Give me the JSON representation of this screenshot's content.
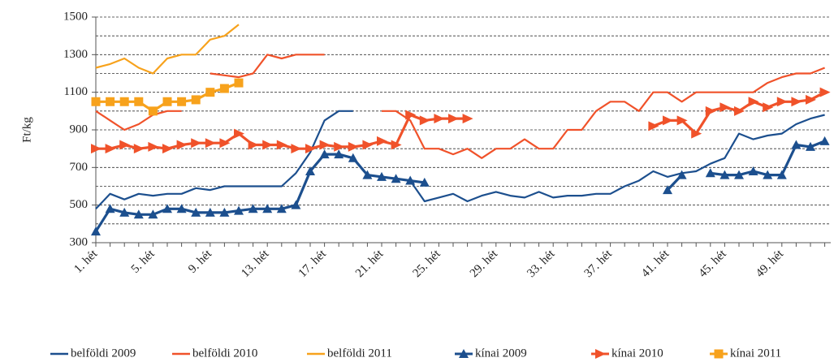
{
  "chart_data": {
    "type": "line",
    "y_label": "Ft/kg",
    "categories": [
      "1. hét",
      null,
      null,
      null,
      "5. hét",
      null,
      null,
      null,
      "9. hét",
      null,
      null,
      null,
      "13. hét",
      null,
      null,
      null,
      "17. hét",
      null,
      null,
      null,
      "21. hét",
      null,
      null,
      null,
      "25. hét",
      null,
      null,
      null,
      "29. hét",
      null,
      null,
      null,
      "33. hét",
      null,
      null,
      null,
      "37. hét",
      null,
      null,
      null,
      "41. hét",
      null,
      null,
      null,
      "45. hét",
      null,
      null,
      null,
      "49. hét",
      null,
      null,
      null
    ],
    "ylim": [
      300,
      1500
    ],
    "yticks": [
      300,
      500,
      700,
      900,
      1100,
      1300,
      1500
    ],
    "minor_yticks": [
      400,
      600,
      800,
      1000,
      1200,
      1400
    ],
    "grid": true,
    "legend": "bottom",
    "series": [
      {
        "name": "belföldi 2009",
        "color": "#1c4f8e",
        "marker": "none",
        "values": [
          480,
          560,
          530,
          560,
          550,
          560,
          560,
          590,
          580,
          600,
          600,
          600,
          600,
          600,
          670,
          780,
          950,
          1000,
          1000,
          null,
          null,
          null,
          630,
          520,
          540,
          560,
          520,
          550,
          570,
          550,
          540,
          570,
          540,
          550,
          550,
          560,
          560,
          600,
          630,
          680,
          650,
          670,
          680,
          720,
          750,
          880,
          850,
          870,
          880,
          930,
          960,
          980
        ]
      },
      {
        "name": "belföldi 2010",
        "color": "#f0522a",
        "marker": "none",
        "values": [
          1000,
          950,
          900,
          930,
          980,
          1000,
          1000,
          null,
          1200,
          1190,
          1180,
          1200,
          1300,
          1280,
          1300,
          1300,
          1300,
          null,
          null,
          null,
          1000,
          1000,
          950,
          800,
          800,
          770,
          800,
          750,
          800,
          800,
          850,
          800,
          800,
          900,
          900,
          1000,
          1050,
          1050,
          1000,
          1100,
          1100,
          1050,
          1100,
          1100,
          1100,
          1100,
          1100,
          1150,
          1180,
          1200,
          1200,
          1230
        ]
      },
      {
        "name": "belföldi 2011",
        "color": "#f7a21c",
        "marker": "none",
        "values": [
          1230,
          1250,
          1280,
          1230,
          1200,
          1280,
          1300,
          1300,
          1380,
          1400,
          1460,
          null,
          null,
          null,
          null,
          null,
          null,
          null,
          null,
          null,
          null,
          null,
          null,
          null,
          null,
          null,
          null,
          null,
          null,
          null,
          null,
          null,
          null,
          null,
          null,
          null,
          null,
          null,
          null,
          null,
          null,
          null,
          null,
          null,
          null,
          null,
          null,
          null,
          null,
          null,
          null,
          null
        ]
      },
      {
        "name": "kínai 2009",
        "color": "#1c4f8e",
        "marker": "triangle",
        "values": [
          360,
          480,
          460,
          450,
          450,
          480,
          480,
          460,
          460,
          460,
          470,
          480,
          480,
          480,
          500,
          680,
          770,
          770,
          750,
          660,
          650,
          640,
          630,
          620,
          null,
          null,
          null,
          null,
          null,
          null,
          null,
          null,
          null,
          null,
          null,
          null,
          null,
          null,
          null,
          null,
          580,
          660,
          null,
          670,
          660,
          660,
          680,
          660,
          660,
          820,
          810,
          840
        ]
      },
      {
        "name": "kínai 2010",
        "color": "#f0522a",
        "marker": "arrow",
        "values": [
          800,
          800,
          820,
          800,
          810,
          800,
          820,
          830,
          830,
          830,
          880,
          820,
          820,
          820,
          800,
          800,
          820,
          810,
          810,
          820,
          840,
          820,
          980,
          950,
          960,
          960,
          960,
          null,
          null,
          null,
          null,
          null,
          null,
          null,
          null,
          null,
          null,
          null,
          null,
          920,
          950,
          950,
          880,
          1000,
          1020,
          1000,
          1050,
          1020,
          1050,
          1050,
          1060,
          1100
        ]
      },
      {
        "name": "kínai 2011",
        "color": "#f7a21c",
        "marker": "square",
        "values": [
          1050,
          1050,
          1050,
          1050,
          1000,
          1050,
          1050,
          1060,
          1100,
          1120,
          1150,
          null,
          null,
          null,
          null,
          null,
          null,
          null,
          null,
          null,
          null,
          null,
          null,
          null,
          null,
          null,
          null,
          null,
          null,
          null,
          null,
          null,
          null,
          null,
          null,
          null,
          null,
          null,
          null,
          null,
          null,
          null,
          null,
          null,
          null,
          null,
          null,
          null,
          null,
          null,
          null,
          null
        ]
      }
    ]
  }
}
